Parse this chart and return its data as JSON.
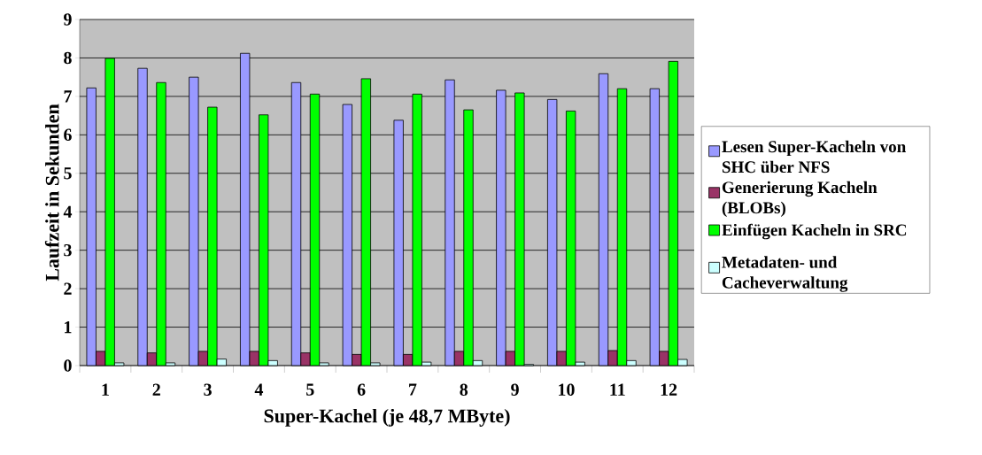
{
  "chart_data": {
    "type": "bar",
    "xlabel": "Super-Kachel (je 48,7 MByte)",
    "ylabel": "Laufzeit in Sekunden",
    "categories": [
      "1",
      "2",
      "3",
      "4",
      "5",
      "6",
      "7",
      "8",
      "9",
      "10",
      "11",
      "12"
    ],
    "series": [
      {
        "name": "Lesen Super-Kacheln von SHC über NFS",
        "color": "#9999ff",
        "values": [
          7.22,
          7.73,
          7.5,
          8.12,
          7.36,
          6.79,
          6.38,
          7.43,
          7.16,
          6.92,
          7.59,
          7.2
        ]
      },
      {
        "name": "Generierung Kacheln (BLOBs)",
        "color": "#993366",
        "values": [
          0.37,
          0.33,
          0.37,
          0.37,
          0.33,
          0.29,
          0.29,
          0.37,
          0.37,
          0.37,
          0.39,
          0.37
        ]
      },
      {
        "name": "Einfügen Kacheln in SRC",
        "color": "#00ff00",
        "values": [
          7.99,
          7.36,
          6.72,
          6.52,
          7.06,
          7.46,
          7.06,
          6.65,
          7.09,
          6.62,
          7.2,
          7.91
        ]
      },
      {
        "name": "Metadaten- und Cacheverwaltung",
        "color": "#ccffff",
        "values": [
          0.07,
          0.07,
          0.17,
          0.13,
          0.07,
          0.07,
          0.09,
          0.13,
          0.03,
          0.09,
          0.13,
          0.16
        ]
      }
    ],
    "ylim": [
      0,
      9
    ],
    "yticks": [
      0,
      1,
      2,
      3,
      4,
      5,
      6,
      7,
      8,
      9
    ],
    "grid": "y",
    "legend": "right"
  }
}
